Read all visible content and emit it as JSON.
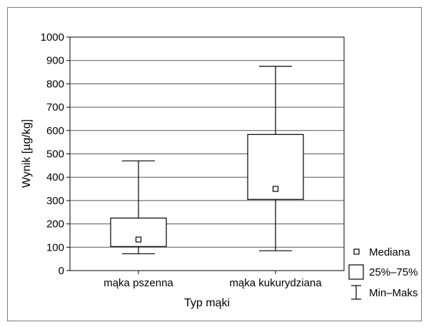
{
  "chart_data": {
    "type": "box",
    "xlabel": "Typ mąki",
    "ylabel": "Wynik [µg/kg]",
    "ylim": [
      0,
      1000
    ],
    "yticks": [
      0,
      100,
      200,
      300,
      400,
      500,
      600,
      700,
      800,
      900,
      1000
    ],
    "grid": true,
    "legend_position": "bottom-right",
    "categories": [
      "mąka pszenna",
      "mąka kukurydziana"
    ],
    "boxes": [
      {
        "category": "mąka pszenna",
        "min": 72,
        "q1": 103,
        "median": 133,
        "q3": 225,
        "max": 470
      },
      {
        "category": "mąka kukurydziana",
        "min": 85,
        "q1": 305,
        "median": 350,
        "q3": 583,
        "max": 875
      }
    ],
    "legend": [
      {
        "symbol": "median-marker",
        "label": "Mediana"
      },
      {
        "symbol": "box",
        "label": "25%–75%"
      },
      {
        "symbol": "whisker",
        "label": "Min–Maks"
      }
    ]
  }
}
